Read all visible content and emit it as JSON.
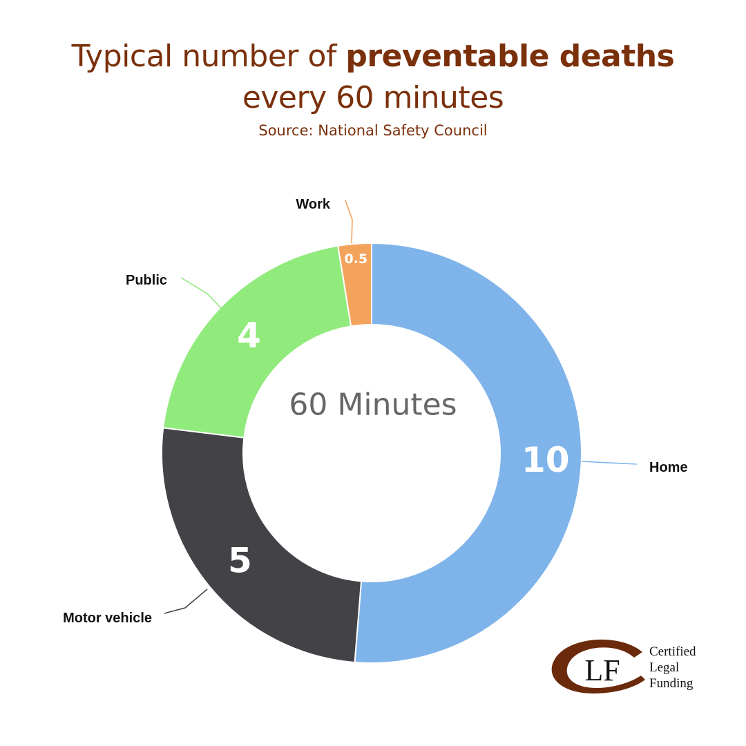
{
  "title": {
    "part1": "Typical number of ",
    "bold": "preventable deaths",
    "line2": "every 60 minutes"
  },
  "source": "Source: National Safety Council",
  "center_label": "60 Minutes",
  "chart_data": {
    "type": "pie",
    "donut": true,
    "title": "Typical number of preventable deaths every 60 minutes",
    "center_text": "60 Minutes",
    "categories": [
      "Home",
      "Motor vehicle",
      "Public",
      "Work"
    ],
    "values": [
      10,
      5,
      4,
      0.5
    ],
    "value_labels": [
      "10",
      "5",
      "4",
      "0.5"
    ],
    "colors": [
      "#7fb4ea",
      "#434347",
      "#90ea7c",
      "#f4a35d"
    ],
    "order": "clockwise from top"
  },
  "logo": {
    "monogram": "CLF",
    "lines": [
      "Certified",
      "Legal",
      "Funding"
    ],
    "color": "#6b2a0c"
  }
}
